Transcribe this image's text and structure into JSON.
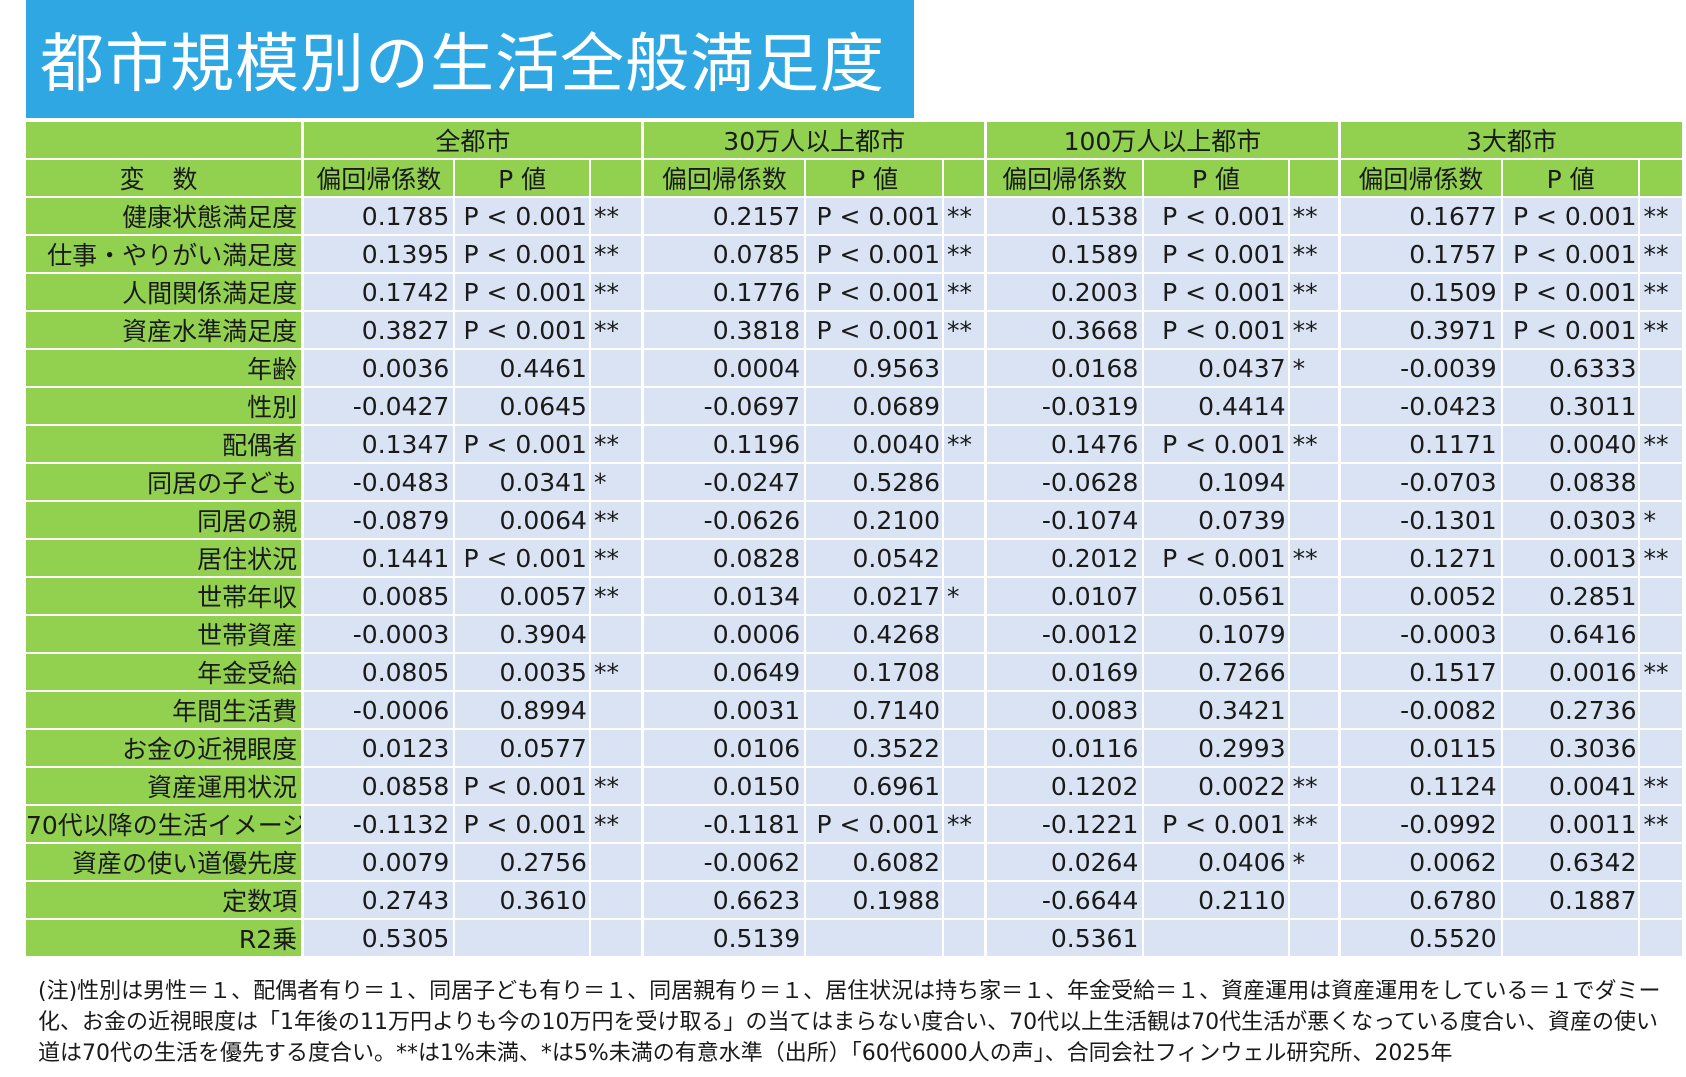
{
  "title": "都市規模別の生活全般満足度",
  "table": {
    "variable_header": "変 数",
    "groups": [
      "全都市",
      "30万人以上都市",
      "100万人以上都市",
      "3大都市"
    ],
    "sub_headers": [
      "偏回帰係数",
      "P 値",
      ""
    ],
    "rows": [
      {
        "label": "健康状態満足度",
        "cells": [
          [
            "0.1785",
            "P < 0.001",
            "**"
          ],
          [
            "0.2157",
            "P < 0.001",
            "**"
          ],
          [
            "0.1538",
            "P < 0.001",
            "**"
          ],
          [
            "0.1677",
            "P < 0.001",
            "**"
          ]
        ]
      },
      {
        "label": "仕事・やりがい満足度",
        "cells": [
          [
            "0.1395",
            "P < 0.001",
            "**"
          ],
          [
            "0.0785",
            "P < 0.001",
            "**"
          ],
          [
            "0.1589",
            "P < 0.001",
            "**"
          ],
          [
            "0.1757",
            "P < 0.001",
            "**"
          ]
        ]
      },
      {
        "label": "人間関係満足度",
        "cells": [
          [
            "0.1742",
            "P < 0.001",
            "**"
          ],
          [
            "0.1776",
            "P < 0.001",
            "**"
          ],
          [
            "0.2003",
            "P < 0.001",
            "**"
          ],
          [
            "0.1509",
            "P < 0.001",
            "**"
          ]
        ]
      },
      {
        "label": "資産水準満足度",
        "cells": [
          [
            "0.3827",
            "P < 0.001",
            "**"
          ],
          [
            "0.3818",
            "P < 0.001",
            "**"
          ],
          [
            "0.3668",
            "P < 0.001",
            "**"
          ],
          [
            "0.3971",
            "P < 0.001",
            "**"
          ]
        ]
      },
      {
        "label": "年齢",
        "cells": [
          [
            "0.0036",
            "0.4461",
            ""
          ],
          [
            "0.0004",
            "0.9563",
            ""
          ],
          [
            "0.0168",
            "0.0437",
            "*"
          ],
          [
            "-0.0039",
            "0.6333",
            ""
          ]
        ]
      },
      {
        "label": "性別",
        "cells": [
          [
            "-0.0427",
            "0.0645",
            ""
          ],
          [
            "-0.0697",
            "0.0689",
            ""
          ],
          [
            "-0.0319",
            "0.4414",
            ""
          ],
          [
            "-0.0423",
            "0.3011",
            ""
          ]
        ]
      },
      {
        "label": "配偶者",
        "cells": [
          [
            "0.1347",
            "P < 0.001",
            "**"
          ],
          [
            "0.1196",
            "0.0040",
            "**"
          ],
          [
            "0.1476",
            "P < 0.001",
            "**"
          ],
          [
            "0.1171",
            "0.0040",
            "**"
          ]
        ]
      },
      {
        "label": "同居の子ども",
        "cells": [
          [
            "-0.0483",
            "0.0341",
            "*"
          ],
          [
            "-0.0247",
            "0.5286",
            ""
          ],
          [
            "-0.0628",
            "0.1094",
            ""
          ],
          [
            "-0.0703",
            "0.0838",
            ""
          ]
        ]
      },
      {
        "label": "同居の親",
        "cells": [
          [
            "-0.0879",
            "0.0064",
            "**"
          ],
          [
            "-0.0626",
            "0.2100",
            ""
          ],
          [
            "-0.1074",
            "0.0739",
            ""
          ],
          [
            "-0.1301",
            "0.0303",
            "*"
          ]
        ]
      },
      {
        "label": "居住状況",
        "cells": [
          [
            "0.1441",
            "P < 0.001",
            "**"
          ],
          [
            "0.0828",
            "0.0542",
            ""
          ],
          [
            "0.2012",
            "P < 0.001",
            "**"
          ],
          [
            "0.1271",
            "0.0013",
            "**"
          ]
        ]
      },
      {
        "label": "世帯年収",
        "cells": [
          [
            "0.0085",
            "0.0057",
            "**"
          ],
          [
            "0.0134",
            "0.0217",
            "*"
          ],
          [
            "0.0107",
            "0.0561",
            ""
          ],
          [
            "0.0052",
            "0.2851",
            ""
          ]
        ]
      },
      {
        "label": "世帯資産",
        "cells": [
          [
            "-0.0003",
            "0.3904",
            ""
          ],
          [
            "0.0006",
            "0.4268",
            ""
          ],
          [
            "-0.0012",
            "0.1079",
            ""
          ],
          [
            "-0.0003",
            "0.6416",
            ""
          ]
        ]
      },
      {
        "label": "年金受給",
        "cells": [
          [
            "0.0805",
            "0.0035",
            "**"
          ],
          [
            "0.0649",
            "0.1708",
            ""
          ],
          [
            "0.0169",
            "0.7266",
            ""
          ],
          [
            "0.1517",
            "0.0016",
            "**"
          ]
        ]
      },
      {
        "label": "年間生活費",
        "cells": [
          [
            "-0.0006",
            "0.8994",
            ""
          ],
          [
            "0.0031",
            "0.7140",
            ""
          ],
          [
            "0.0083",
            "0.3421",
            ""
          ],
          [
            "-0.0082",
            "0.2736",
            ""
          ]
        ]
      },
      {
        "label": "お金の近視眼度",
        "cells": [
          [
            "0.0123",
            "0.0577",
            ""
          ],
          [
            "0.0106",
            "0.3522",
            ""
          ],
          [
            "0.0116",
            "0.2993",
            ""
          ],
          [
            "0.0115",
            "0.3036",
            ""
          ]
        ]
      },
      {
        "label": "資産運用状況",
        "cells": [
          [
            "0.0858",
            "P < 0.001",
            "**"
          ],
          [
            "0.0150",
            "0.6961",
            ""
          ],
          [
            "0.1202",
            "0.0022",
            "**"
          ],
          [
            "0.1124",
            "0.0041",
            "**"
          ]
        ]
      },
      {
        "label": "70代以降の生活イメージ",
        "cells": [
          [
            "-0.1132",
            "P < 0.001",
            "**"
          ],
          [
            "-0.1181",
            "P < 0.001",
            "**"
          ],
          [
            "-0.1221",
            "P < 0.001",
            "**"
          ],
          [
            "-0.0992",
            "0.0011",
            "**"
          ]
        ]
      },
      {
        "label": "資産の使い道優先度",
        "cells": [
          [
            "0.0079",
            "0.2756",
            ""
          ],
          [
            "-0.0062",
            "0.6082",
            ""
          ],
          [
            "0.0264",
            "0.0406",
            "*"
          ],
          [
            "0.0062",
            "0.6342",
            ""
          ]
        ]
      },
      {
        "label": "定数項",
        "cells": [
          [
            "0.2743",
            "0.3610",
            ""
          ],
          [
            "0.6623",
            "0.1988",
            ""
          ],
          [
            "-0.6644",
            "0.2110",
            ""
          ],
          [
            "0.6780",
            "0.1887",
            ""
          ]
        ]
      },
      {
        "label": "R2乗",
        "cells": [
          [
            "0.5305",
            "",
            ""
          ],
          [
            "0.5139",
            "",
            ""
          ],
          [
            "0.5361",
            "",
            ""
          ],
          [
            "0.5520",
            "",
            ""
          ]
        ]
      }
    ]
  },
  "note": "(注)性別は男性＝１、配偶者有り＝１、同居子ども有り＝１、同居親有り＝１、居住状況は持ち家＝１、年金受給＝１、資産運用は資産運用をしている＝１でダミー化、お金の近視眼度は「1年後の11万円よりも今の10万円を受け取る」の当てはまらない度合い、70代以上生活観は70代生活が悪くなっている度合い、資産の使い道は70代の生活を優先する度合い。**は1%未満、*は5%未満の有意水準（出所）「60代6000人の声」、合同会社フィンウェル研究所、2025年"
}
